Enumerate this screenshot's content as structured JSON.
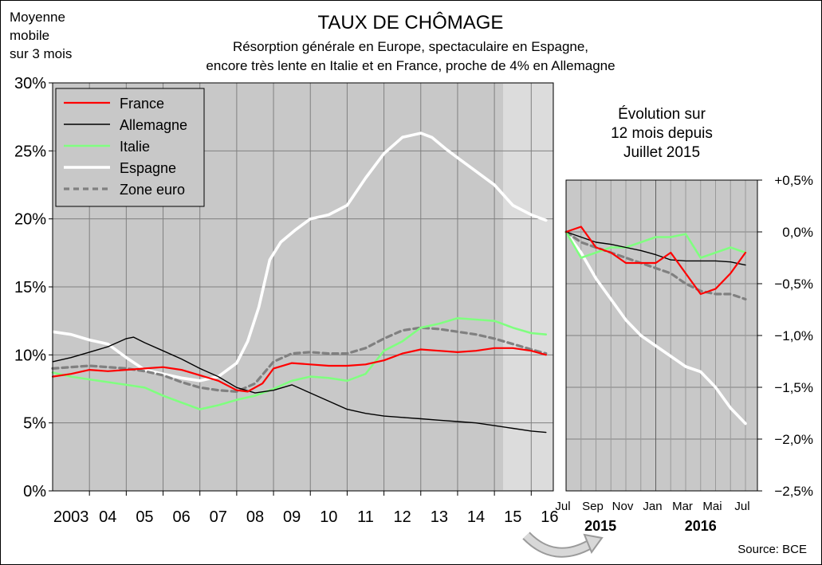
{
  "header": {
    "note": [
      "Moyenne",
      "mobile",
      "sur 3 mois"
    ],
    "title": "TAUX DE CHÔMAGE",
    "subtitle_lines": [
      "Résorption générale en Europe, spectaculaire en Espagne,",
      "encore très lente en Italie et en France, proche de 4% en Allemagne"
    ]
  },
  "inset_title": [
    "Évolution sur",
    "12 mois depuis",
    "Juillet 2015"
  ],
  "source": "Source: BCE",
  "colors": {
    "france": "#ff0000",
    "allemagne": "#000000",
    "italie": "#80ff80",
    "espagne": "#ffffff",
    "zone_euro": "#808080",
    "plot_bg": "#c8c8c8",
    "recent_bg": "#dcdcdc",
    "arrow": "#b4b4b4"
  },
  "chart_data": [
    {
      "type": "line",
      "ylim": [
        0,
        30
      ],
      "yticks": [
        "0%",
        "5%",
        "10%",
        "15%",
        "20%",
        "25%",
        "30%"
      ],
      "xlim": [
        2003,
        2016.6
      ],
      "xtick_labels": [
        "2003",
        "04",
        "05",
        "06",
        "07",
        "08",
        "09",
        "10",
        "11",
        "12",
        "13",
        "14",
        "15",
        "16"
      ],
      "legend_position": "top-left",
      "grid": true,
      "series": [
        {
          "name": "France",
          "x": [
            2003,
            2003.5,
            2004,
            2004.5,
            2005,
            2005.5,
            2006,
            2006.5,
            2007,
            2007.5,
            2008,
            2008.3,
            2008.7,
            2009,
            2009.5,
            2010,
            2010.5,
            2011,
            2011.5,
            2012,
            2012.5,
            2013,
            2013.5,
            2014,
            2014.5,
            2015,
            2015.5,
            2016,
            2016.4
          ],
          "y": [
            8.4,
            8.6,
            8.9,
            8.8,
            8.9,
            9.0,
            9.1,
            8.9,
            8.5,
            8.1,
            7.4,
            7.3,
            7.9,
            9.0,
            9.4,
            9.3,
            9.2,
            9.2,
            9.3,
            9.6,
            10.1,
            10.4,
            10.3,
            10.2,
            10.3,
            10.5,
            10.5,
            10.3,
            10.0
          ]
        },
        {
          "name": "Allemagne",
          "x": [
            2003,
            2003.5,
            2004,
            2004.5,
            2005,
            2005.2,
            2005.5,
            2006,
            2006.5,
            2007,
            2007.5,
            2008,
            2008.5,
            2009,
            2009.5,
            2010,
            2010.5,
            2011,
            2011.5,
            2012,
            2012.5,
            2013,
            2013.5,
            2014,
            2014.5,
            2015,
            2015.5,
            2016,
            2016.4
          ],
          "y": [
            9.5,
            9.8,
            10.2,
            10.6,
            11.2,
            11.3,
            10.9,
            10.3,
            9.7,
            9.0,
            8.4,
            7.6,
            7.2,
            7.4,
            7.8,
            7.2,
            6.6,
            6.0,
            5.7,
            5.5,
            5.4,
            5.3,
            5.2,
            5.1,
            5.0,
            4.8,
            4.6,
            4.4,
            4.3
          ]
        },
        {
          "name": "Italie",
          "x": [
            2003,
            2003.5,
            2004,
            2004.5,
            2005,
            2005.5,
            2006,
            2006.5,
            2007,
            2007.5,
            2008,
            2008.5,
            2009,
            2009.5,
            2010,
            2010.5,
            2011,
            2011.5,
            2012,
            2012.5,
            2013,
            2013.5,
            2014,
            2014.5,
            2015,
            2015.5,
            2016,
            2016.4
          ],
          "y": [
            8.7,
            8.4,
            8.2,
            8.0,
            7.8,
            7.6,
            7.0,
            6.5,
            6.0,
            6.3,
            6.7,
            7.0,
            7.5,
            8.1,
            8.4,
            8.3,
            8.1,
            8.6,
            10.3,
            11.0,
            12.0,
            12.3,
            12.7,
            12.6,
            12.5,
            12.0,
            11.6,
            11.5
          ]
        },
        {
          "name": "Espagne",
          "x": [
            2003,
            2003.5,
            2004,
            2004.5,
            2005,
            2005.5,
            2006,
            2006.5,
            2007,
            2007.5,
            2008,
            2008.3,
            2008.6,
            2008.9,
            2009.2,
            2009.6,
            2010,
            2010.5,
            2011,
            2011.5,
            2012,
            2012.5,
            2013,
            2013.3,
            2013.7,
            2014,
            2014.5,
            2015,
            2015.5,
            2016,
            2016.4
          ],
          "y": [
            11.7,
            11.5,
            11.1,
            10.8,
            9.8,
            8.9,
            8.6,
            8.3,
            8.1,
            8.4,
            9.4,
            11.0,
            13.5,
            17.0,
            18.3,
            19.2,
            20.0,
            20.3,
            21.0,
            23.0,
            24.8,
            26.0,
            26.3,
            26.0,
            25.1,
            24.5,
            23.5,
            22.5,
            21.0,
            20.3,
            19.9
          ]
        },
        {
          "name": "Zone euro",
          "x": [
            2003,
            2003.5,
            2004,
            2004.5,
            2005,
            2005.5,
            2006,
            2006.5,
            2007,
            2007.5,
            2008,
            2008.5,
            2009,
            2009.5,
            2010,
            2010.5,
            2011,
            2011.5,
            2012,
            2012.5,
            2013,
            2013.5,
            2014,
            2014.5,
            2015,
            2015.5,
            2016,
            2016.4
          ],
          "y": [
            9.0,
            9.1,
            9.2,
            9.1,
            9.0,
            8.8,
            8.5,
            8.0,
            7.6,
            7.4,
            7.3,
            7.9,
            9.5,
            10.1,
            10.2,
            10.1,
            10.1,
            10.5,
            11.2,
            11.8,
            12.0,
            11.9,
            11.7,
            11.5,
            11.2,
            10.8,
            10.4,
            10.1
          ]
        }
      ]
    },
    {
      "type": "line",
      "title": "Évolution sur 12 mois depuis Juillet 2015",
      "ylim": [
        -2.5,
        0.5
      ],
      "yticks": [
        "−2,5%",
        "−2,0%",
        "−1,5%",
        "−1,0%",
        "−0,5%",
        "0,0%",
        "+0,5%"
      ],
      "xlim": [
        0,
        12.8
      ],
      "xtick_labels": [
        "Jul",
        "Sep",
        "Nov",
        "Jan",
        "Mar",
        "Mai",
        "Jul"
      ],
      "xtick_positions": [
        0,
        2,
        4,
        6,
        8,
        10,
        12
      ],
      "year_labels": [
        "2015",
        "2016"
      ],
      "year_label_positions": [
        2.3,
        9.0
      ],
      "grid": true,
      "series": [
        {
          "name": "France",
          "x": [
            0,
            1,
            2,
            3,
            4,
            5,
            6,
            7,
            8,
            9,
            10,
            11,
            12
          ],
          "y": [
            0.0,
            0.05,
            -0.15,
            -0.2,
            -0.3,
            -0.3,
            -0.3,
            -0.2,
            -0.4,
            -0.6,
            -0.55,
            -0.4,
            -0.2
          ]
        },
        {
          "name": "Allemagne",
          "x": [
            0,
            1,
            2,
            3,
            4,
            5,
            6,
            7,
            8,
            9,
            10,
            11,
            12
          ],
          "y": [
            0.0,
            -0.05,
            -0.1,
            -0.12,
            -0.15,
            -0.18,
            -0.22,
            -0.27,
            -0.28,
            -0.28,
            -0.28,
            -0.29,
            -0.32
          ]
        },
        {
          "name": "Italie",
          "x": [
            0,
            1,
            2,
            3,
            4,
            5,
            6,
            7,
            8,
            9,
            10,
            11,
            12
          ],
          "y": [
            0.0,
            -0.25,
            -0.2,
            -0.15,
            -0.15,
            -0.1,
            -0.05,
            -0.05,
            -0.02,
            -0.25,
            -0.2,
            -0.15,
            -0.2
          ]
        },
        {
          "name": "Espagne",
          "x": [
            0,
            1,
            2,
            3,
            4,
            5,
            6,
            7,
            8,
            9,
            10,
            11,
            12
          ],
          "y": [
            0.0,
            -0.2,
            -0.45,
            -0.65,
            -0.85,
            -1.0,
            -1.1,
            -1.2,
            -1.3,
            -1.35,
            -1.5,
            -1.7,
            -1.85
          ]
        },
        {
          "name": "Zone euro",
          "x": [
            0,
            1,
            2,
            3,
            4,
            5,
            6,
            7,
            8,
            9,
            10,
            11,
            12
          ],
          "y": [
            0.0,
            -0.1,
            -0.15,
            -0.2,
            -0.25,
            -0.3,
            -0.35,
            -0.4,
            -0.5,
            -0.57,
            -0.6,
            -0.6,
            -0.65
          ]
        }
      ]
    }
  ]
}
